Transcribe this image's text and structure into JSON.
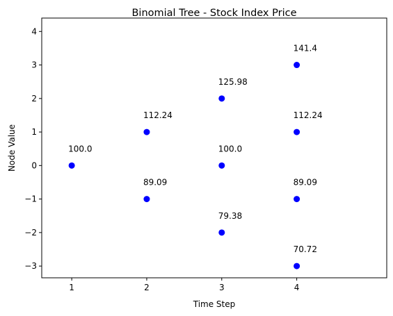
{
  "chart_data": {
    "type": "scatter",
    "title": "Binomial Tree - Stock Index Price",
    "xlabel": "Time Step",
    "ylabel": "Node Value",
    "xlim": [
      0.6,
      5.2
    ],
    "ylim": [
      -3.35,
      4.4
    ],
    "xticks": [
      1,
      2,
      3,
      4
    ],
    "yticks": [
      -3,
      -2,
      -1,
      0,
      1,
      2,
      3,
      4
    ],
    "ytick_labels": [
      "−3",
      "−2",
      "−1",
      "0",
      "1",
      "2",
      "3",
      "4"
    ],
    "grid": false,
    "marker_color": "#0000ff",
    "points": [
      {
        "x": 1,
        "y": 0,
        "label": "100.0"
      },
      {
        "x": 2,
        "y": 1,
        "label": "112.24"
      },
      {
        "x": 2,
        "y": -1,
        "label": "89.09"
      },
      {
        "x": 3,
        "y": 2,
        "label": "125.98"
      },
      {
        "x": 3,
        "y": 0,
        "label": "100.0"
      },
      {
        "x": 3,
        "y": -2,
        "label": "79.38"
      },
      {
        "x": 4,
        "y": 3,
        "label": "141.4"
      },
      {
        "x": 4,
        "y": 1,
        "label": "112.24"
      },
      {
        "x": 4,
        "y": -1,
        "label": "89.09"
      },
      {
        "x": 4,
        "y": -3,
        "label": "70.72"
      }
    ]
  }
}
